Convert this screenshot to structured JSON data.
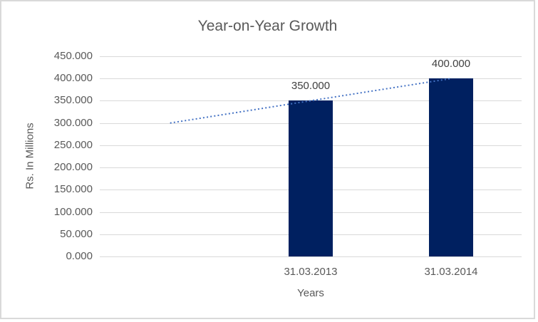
{
  "chart_data": {
    "type": "bar",
    "title": "Year-on-Year Growth",
    "xlabel": "Years",
    "ylabel": "Rs. In Millions",
    "categories": [
      "31.03.2013",
      "31.03.2014"
    ],
    "values": [
      350,
      400
    ],
    "value_labels": [
      "350.000",
      "400.000"
    ],
    "ylim": [
      0,
      450
    ],
    "ytick_step": 50,
    "ytick_labels": [
      "450.000",
      "400.000",
      "350.000",
      "300.000",
      "250.000",
      "200.000",
      "150.000",
      "100.000",
      "50.000",
      "0.000"
    ],
    "grid": "horizontal",
    "legend": "none",
    "trendline": {
      "style": "dotted",
      "x_slots": 3,
      "values": [
        300,
        350,
        400
      ],
      "color": "#4472C4"
    },
    "colors": {
      "bar": "#002060",
      "trendline": "#4472C4",
      "gridline": "#D9D9D9",
      "title_text": "#595959",
      "axis_text": "#595959",
      "data_label_text": "#404040",
      "chart_border": "#D9D9D9"
    }
  }
}
